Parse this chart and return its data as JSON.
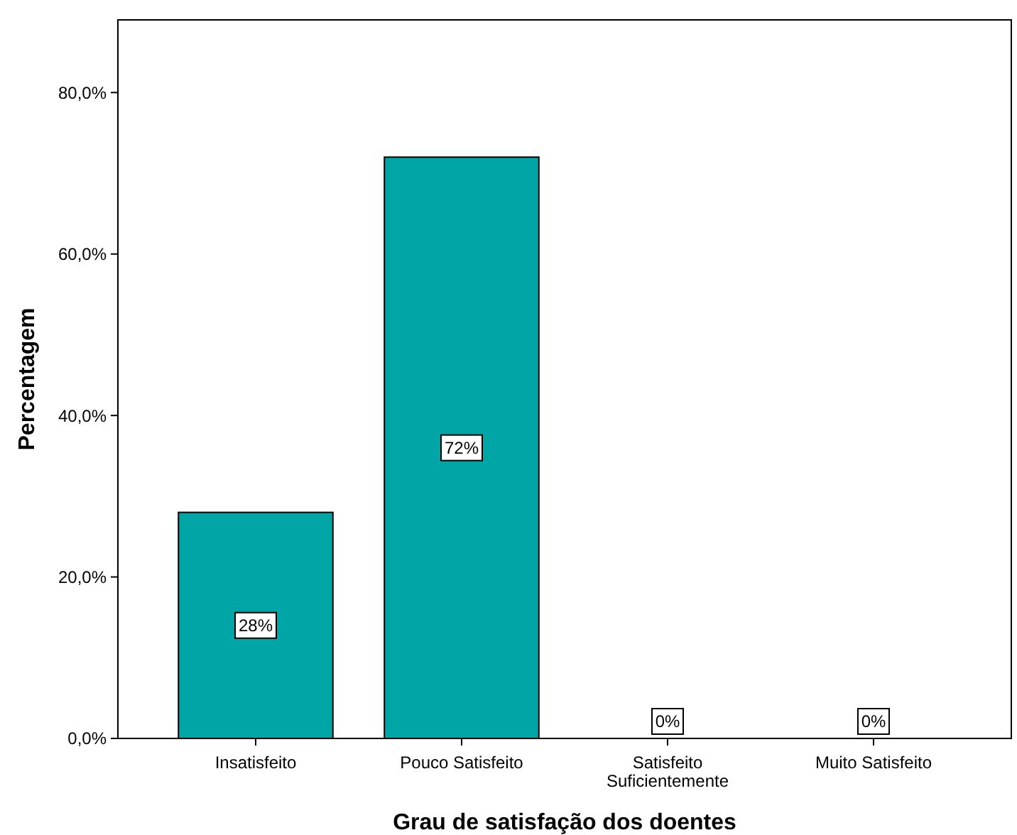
{
  "chart_data": {
    "type": "bar",
    "xlabel": "Grau de satisfação dos doentes",
    "ylabel": "Percentagem",
    "categories": [
      "Insatisfeito",
      "Pouco Satisfeito",
      "Satisfeito Suficientemente",
      "Muito Satisfeito"
    ],
    "values": [
      28,
      72,
      0,
      0
    ],
    "color": "#00a5a5",
    "value_labels": [
      "28%",
      "72%",
      "0%",
      "0%"
    ],
    "ylim": [
      0,
      89
    ],
    "yticks": [
      {
        "value": 0,
        "label": "0,0%"
      },
      {
        "value": 20,
        "label": "20,0%"
      },
      {
        "value": 40,
        "label": "40,0%"
      },
      {
        "value": 60,
        "label": "60,0%"
      },
      {
        "value": 80,
        "label": "80,0%"
      }
    ],
    "grid": false
  }
}
